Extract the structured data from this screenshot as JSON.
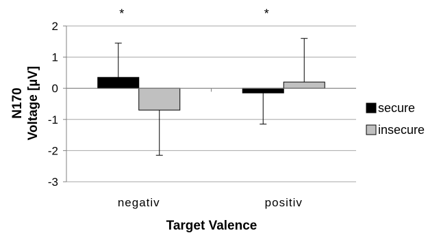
{
  "chart_data": {
    "type": "bar",
    "categories": [
      "negativ",
      "positiv"
    ],
    "series": [
      {
        "name": "secure",
        "values": [
          0.35,
          -0.15
        ],
        "error_plus": [
          1.1,
          0
        ],
        "error_minus": [
          0,
          1.0
        ],
        "color": "#000000"
      },
      {
        "name": "insecure",
        "values": [
          -0.7,
          0.2
        ],
        "error_plus": [
          0,
          1.4
        ],
        "error_minus": [
          1.45,
          0
        ],
        "color": "#c0c0c0"
      }
    ],
    "xlabel": "Target Valence",
    "ylabel_line1": "N170",
    "ylabel_line2": "Voltage [µV]",
    "ylim": [
      -3,
      2
    ],
    "yticks": [
      "2",
      "1",
      "0",
      "-1",
      "-2",
      "-3"
    ],
    "significance_markers": [
      "*",
      "*"
    ],
    "grid": "horizontal",
    "legend_position": "right"
  }
}
